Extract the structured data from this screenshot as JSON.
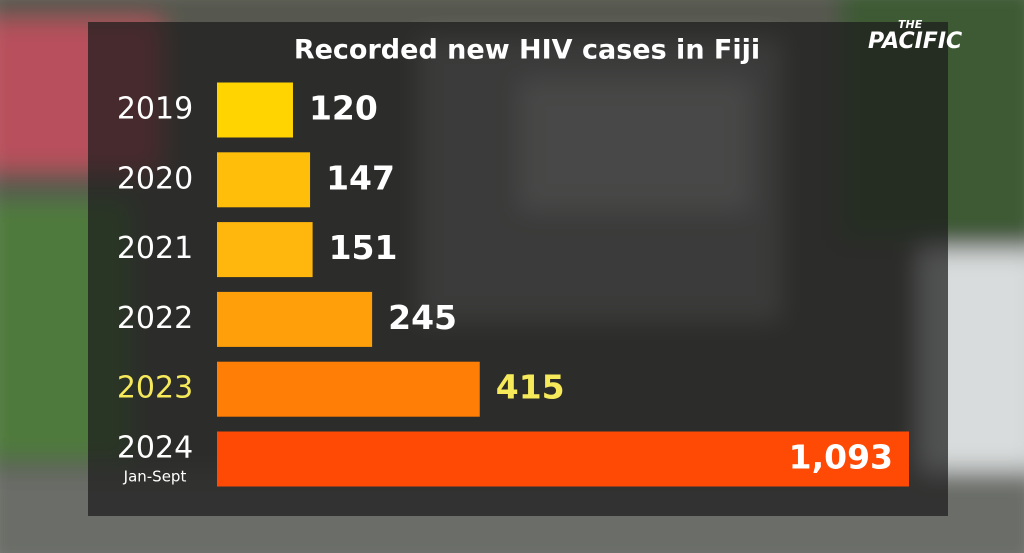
{
  "chart_data": {
    "type": "bar",
    "orientation": "horizontal",
    "title": "Recorded new HIV cases in Fiji",
    "categories": [
      "2019",
      "2020",
      "2021",
      "2022",
      "2023",
      "2024"
    ],
    "category_sublabels": [
      null,
      null,
      null,
      null,
      null,
      "Jan-Sept"
    ],
    "values": [
      120,
      147,
      151,
      245,
      415,
      1093
    ],
    "value_labels": [
      "120",
      "147",
      "151",
      "245",
      "415",
      "1,093"
    ],
    "colors": [
      "#ffd400",
      "#ffbe0a",
      "#ffb70d",
      "#ff9f0a",
      "#ff7f06",
      "#ff4a05"
    ],
    "highlight_index": 4,
    "highlight_color": "#f6ea5a"
  },
  "logo": {
    "line1": "THE",
    "line2": "PACIFIC"
  }
}
